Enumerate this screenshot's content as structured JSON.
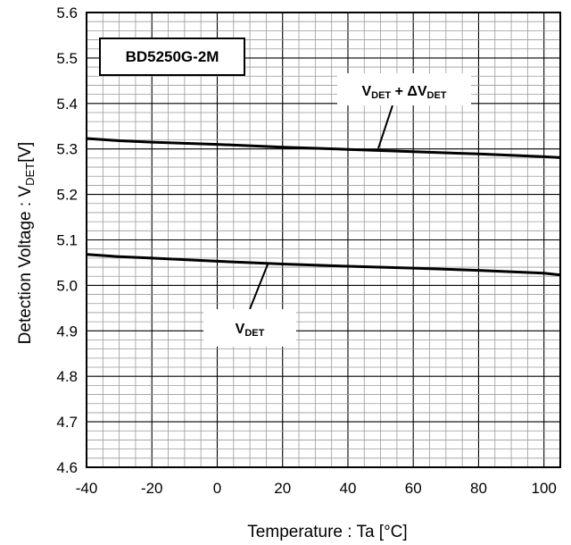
{
  "chart_data": {
    "type": "line",
    "title": "",
    "xlabel": "Temperature : Ta [°C]",
    "ylabel_main": "Detection Voltage : V",
    "ylabel_sub": "DET",
    "ylabel_unit": "[V]",
    "xlim": [
      -40,
      105
    ],
    "ylim": [
      4.6,
      5.6
    ],
    "x_ticks": [
      "-40",
      "-20",
      "0",
      "20",
      "40",
      "60",
      "80",
      "100"
    ],
    "x_tick_values": [
      -40,
      -20,
      0,
      20,
      40,
      60,
      80,
      100
    ],
    "y_ticks": [
      "4.6",
      "4.7",
      "4.8",
      "4.9",
      "5.0",
      "5.1",
      "5.2",
      "5.3",
      "5.4",
      "5.5",
      "5.6"
    ],
    "y_tick_values": [
      4.6,
      4.7,
      4.8,
      4.9,
      5.0,
      5.1,
      5.2,
      5.3,
      5.4,
      5.5,
      5.6
    ],
    "grid": true,
    "minor_grid": true,
    "legend_box": "BD5250G-2M",
    "series": [
      {
        "label_main": "V",
        "label_sub": "DET",
        "label_middle": " + ΔV",
        "label_sub2": "DET",
        "x": [
          -40,
          -30,
          -20,
          0,
          20,
          40,
          60,
          80,
          100,
          105
        ],
        "y": [
          5.323,
          5.318,
          5.315,
          5.31,
          5.304,
          5.299,
          5.294,
          5.289,
          5.283,
          5.281
        ]
      },
      {
        "label_main": "V",
        "label_sub": "DET",
        "x": [
          -40,
          -30,
          -20,
          0,
          20,
          40,
          60,
          80,
          100,
          105
        ],
        "y": [
          5.068,
          5.063,
          5.06,
          5.053,
          5.047,
          5.042,
          5.038,
          5.033,
          5.027,
          5.023
        ]
      }
    ],
    "line_color": "#000000"
  }
}
